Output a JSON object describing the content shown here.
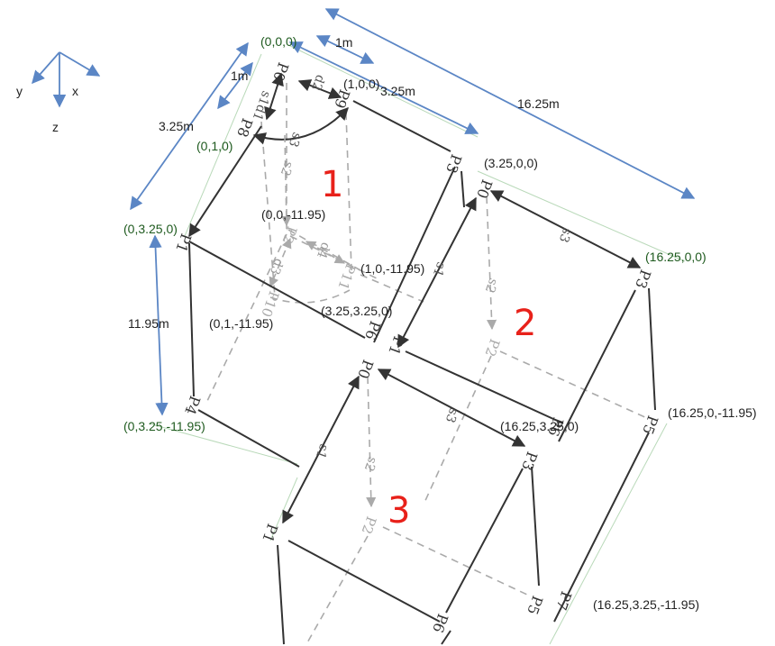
{
  "axes": {
    "x": "x",
    "y": "y",
    "z": "z"
  },
  "dimensions": {
    "d_1m_top": "1m",
    "d_325_top": "3.25m",
    "d_1625": "16.25m",
    "d_1m_left": "1m",
    "d_325_left": "3.25m",
    "d_1195": "11.95m"
  },
  "coords": {
    "c000": "(0,0,0)",
    "c100": "(1,0,0)",
    "c010": "(0,1,0)",
    "c3200": "(3.25,0,0)",
    "c0320": "(0,3.25,0)",
    "c00n": "(0,0,-11.95)",
    "c10n": "(1,0,-11.95)",
    "c01n": "(0,1,-11.95)",
    "c32320": "(3.25,3.25,0)",
    "c16200": "(16.25,0,0)",
    "c032n": "(0,3.25,-11.95)",
    "c1632_0": "(16.25,3.25,0)",
    "c1620n": "(16.25,0,-11.95)",
    "c1632n": "(16.25,3.25,-11.95)"
  },
  "modules": {
    "m1": "1",
    "m2": "2",
    "m3": "3"
  },
  "nodes": {
    "m1_p0": "P0",
    "m1_p9": "P9",
    "m1_p8": "P8",
    "m1_p3": "P3",
    "m1_p1": "P1",
    "m1_p2": "P2",
    "m1_p11": "P11",
    "m1_p10": "P10",
    "m1_p6": "P6",
    "m1_p4": "P4",
    "m2_p0": "P0",
    "m2_p3": "P3",
    "m2_p1": "P1",
    "m2_p2": "P2",
    "m2_p6": "P6",
    "m2_p5": "P5",
    "m2_p7": "P7",
    "m3_p0": "P0",
    "m3_p3": "P3",
    "m3_p1": "P1",
    "m3_p2": "P2",
    "m3_p5": "P5",
    "m3_p6": "P6"
  },
  "members": {
    "m1_d2": "d2",
    "m1_s1d1": "s1d1",
    "m1_s3": "s3",
    "m1_s2": "s2",
    "m1_d4": "d4",
    "m1_d3": "d3",
    "m2_s3": "s3",
    "m2_s1": "s1",
    "m2_s2": "s2",
    "m3_s3": "s3",
    "m3_s1": "s1",
    "m3_s2": "s2"
  }
}
